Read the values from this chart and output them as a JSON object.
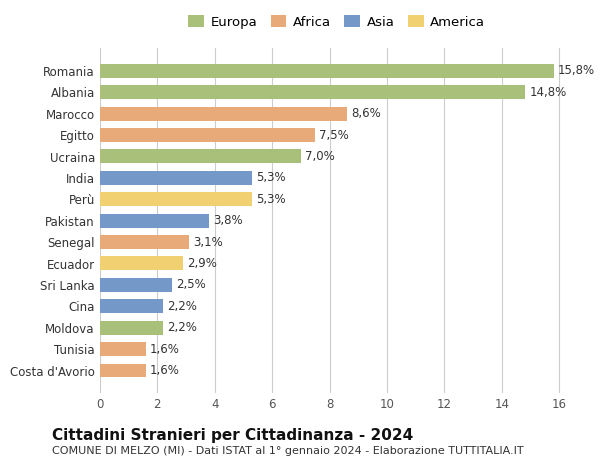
{
  "countries": [
    "Costa d'Avorio",
    "Tunisia",
    "Moldova",
    "Cina",
    "Sri Lanka",
    "Ecuador",
    "Senegal",
    "Pakistan",
    "Perù",
    "India",
    "Ucraina",
    "Egitto",
    "Marocco",
    "Albania",
    "Romania"
  ],
  "values": [
    1.6,
    1.6,
    2.2,
    2.2,
    2.5,
    2.9,
    3.1,
    3.8,
    5.3,
    5.3,
    7.0,
    7.5,
    8.6,
    14.8,
    15.8
  ],
  "labels": [
    "1,6%",
    "1,6%",
    "2,2%",
    "2,2%",
    "2,5%",
    "2,9%",
    "3,1%",
    "3,8%",
    "5,3%",
    "5,3%",
    "7,0%",
    "7,5%",
    "8,6%",
    "14,8%",
    "15,8%"
  ],
  "continents": [
    "Africa",
    "Africa",
    "Europa",
    "Asia",
    "Asia",
    "America",
    "Africa",
    "Asia",
    "America",
    "Asia",
    "Europa",
    "Africa",
    "Africa",
    "Europa",
    "Europa"
  ],
  "continent_colors": {
    "Europa": "#a8c07a",
    "Africa": "#e8aa78",
    "Asia": "#7498c8",
    "America": "#f0d070"
  },
  "legend_order": [
    "Europa",
    "Africa",
    "Asia",
    "America"
  ],
  "xlim": [
    0,
    16.5
  ],
  "xticks": [
    0,
    2,
    4,
    6,
    8,
    10,
    12,
    14,
    16
  ],
  "title": "Cittadini Stranieri per Cittadinanza - 2024",
  "subtitle": "COMUNE DI MELZO (MI) - Dati ISTAT al 1° gennaio 2024 - Elaborazione TUTTITALIA.IT",
  "background_color": "#ffffff",
  "grid_color": "#cccccc",
  "bar_height": 0.65,
  "label_fontsize": 8.5,
  "tick_fontsize": 8.5,
  "title_fontsize": 11,
  "subtitle_fontsize": 8
}
